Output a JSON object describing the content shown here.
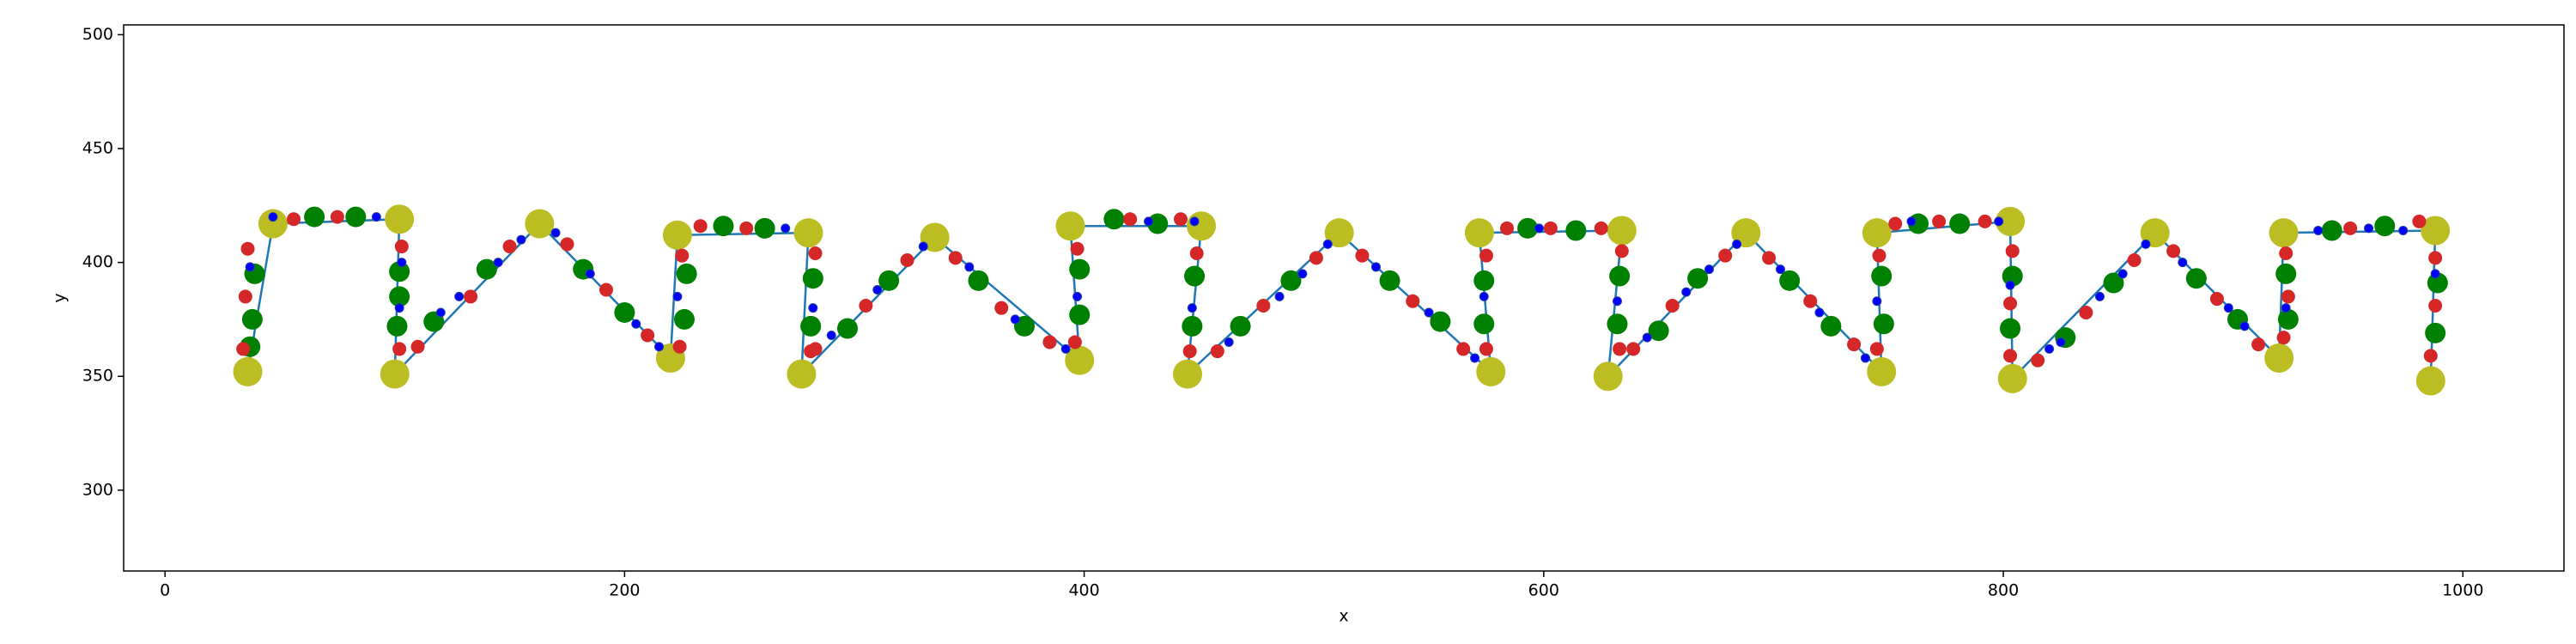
{
  "chart_data": {
    "type": "scatter",
    "xlabel": "x",
    "ylabel": "y",
    "xlim": [
      -18,
      1044
    ],
    "ylim": [
      264.5,
      504.3
    ],
    "xticks": [
      0,
      200,
      400,
      600,
      800,
      1000
    ],
    "yticks": [
      300,
      350,
      400,
      450,
      500
    ],
    "series": [
      {
        "type": "line",
        "color": "#1f77b4",
        "x": [
          36,
          47,
          102,
          100,
          163,
          220,
          223,
          280,
          277,
          335,
          398,
          394,
          451,
          445,
          511,
          577,
          572,
          634,
          628,
          688,
          747,
          745,
          803,
          804,
          866,
          920,
          922,
          988,
          986
        ],
        "y": [
          352,
          417,
          419,
          351,
          417,
          358,
          412,
          413,
          351,
          411,
          357,
          416,
          416,
          351,
          413,
          352,
          413,
          414,
          350,
          413,
          352,
          413,
          418,
          349,
          413,
          358,
          413,
          414,
          348
        ]
      },
      {
        "type": "scatter",
        "color": "#bcbd22",
        "x": [
          36,
          47,
          102,
          100,
          163,
          220,
          223,
          280,
          277,
          335,
          398,
          394,
          451,
          445,
          511,
          577,
          572,
          634,
          628,
          688,
          747,
          745,
          803,
          804,
          866,
          920,
          922,
          988,
          986
        ],
        "y": [
          352,
          417,
          419,
          351,
          417,
          358,
          412,
          413,
          351,
          411,
          357,
          416,
          416,
          351,
          413,
          352,
          413,
          414,
          350,
          413,
          352,
          413,
          418,
          349,
          413,
          358,
          413,
          414,
          348
        ]
      },
      {
        "type": "scatter",
        "color": "#008000",
        "x": [
          37,
          38,
          39,
          65,
          83,
          101,
          102,
          102,
          117,
          140,
          182,
          200,
          226,
          227,
          243,
          261,
          281,
          282,
          297,
          315,
          354,
          374,
          398,
          398,
          413,
          432,
          447,
          448,
          468,
          490,
          533,
          555,
          574,
          574,
          593,
          614,
          632,
          633,
          650,
          667,
          707,
          725,
          748,
          747,
          763,
          781,
          803,
          804,
          827,
          848,
          884,
          902,
          924,
          923,
          943,
          966,
          988,
          989
        ],
        "y": [
          363,
          375,
          395,
          420,
          420,
          372,
          385,
          396,
          374,
          397,
          397,
          378,
          375,
          395,
          416,
          415,
          372,
          393,
          371,
          392,
          392,
          372,
          377,
          397,
          419,
          417,
          372,
          394,
          372,
          392,
          392,
          374,
          373,
          392,
          415,
          414,
          373,
          394,
          370,
          393,
          392,
          372,
          373,
          394,
          417,
          417,
          371,
          394,
          367,
          391,
          393,
          375,
          375,
          395,
          414,
          416,
          369,
          391
        ]
      },
      {
        "type": "scatter",
        "color": "#d62728",
        "x": [
          34,
          35,
          36,
          56,
          75,
          102,
          103,
          110,
          133,
          150,
          175,
          192,
          210,
          224,
          225,
          233,
          253,
          281,
          283,
          283,
          305,
          323,
          344,
          364,
          385,
          396,
          397,
          420,
          442,
          446,
          449,
          458,
          478,
          501,
          521,
          543,
          565,
          575,
          575,
          584,
          603,
          625,
          633,
          634,
          639,
          656,
          679,
          698,
          716,
          735,
          745,
          746,
          753,
          772,
          792,
          803,
          803,
          804,
          815,
          836,
          857,
          874,
          893,
          911,
          922,
          924,
          923,
          951,
          981,
          986,
          988,
          988
        ],
        "y": [
          362,
          385,
          406,
          419,
          420,
          362,
          407,
          363,
          385,
          407,
          408,
          388,
          368,
          363,
          403,
          416,
          415,
          361,
          404,
          362,
          381,
          401,
          402,
          380,
          365,
          365,
          406,
          419,
          419,
          361,
          404,
          361,
          381,
          402,
          403,
          383,
          362,
          362,
          403,
          415,
          415,
          415,
          362,
          405,
          362,
          381,
          403,
          402,
          383,
          364,
          362,
          403,
          417,
          418,
          418,
          359,
          382,
          405,
          357,
          378,
          401,
          405,
          384,
          364,
          367,
          385,
          404,
          415,
          418,
          359,
          381,
          402
        ]
      },
      {
        "type": "scatter",
        "color": "#0000ff",
        "x": [
          37,
          47,
          92,
          102,
          103,
          120,
          128,
          145,
          155,
          170,
          185,
          205,
          215,
          223,
          270,
          282,
          290,
          310,
          330,
          350,
          370,
          392,
          397,
          428,
          448,
          447,
          463,
          485,
          495,
          506,
          527,
          550,
          570,
          574,
          598,
          632,
          645,
          662,
          672,
          684,
          703,
          720,
          740,
          745,
          760,
          798,
          803,
          820,
          825,
          842,
          852,
          862,
          878,
          898,
          905,
          923,
          937,
          959,
          974,
          988
        ],
        "y": [
          398,
          420,
          420,
          380,
          400,
          378,
          385,
          400,
          410,
          413,
          395,
          373,
          363,
          385,
          415,
          380,
          368,
          388,
          407,
          398,
          375,
          362,
          385,
          418,
          418,
          380,
          365,
          385,
          395,
          408,
          398,
          378,
          358,
          385,
          415,
          383,
          367,
          387,
          397,
          408,
          397,
          378,
          358,
          383,
          418,
          418,
          390,
          362,
          365,
          385,
          395,
          408,
          400,
          380,
          372,
          380,
          414,
          415,
          414,
          395
        ]
      }
    ]
  }
}
